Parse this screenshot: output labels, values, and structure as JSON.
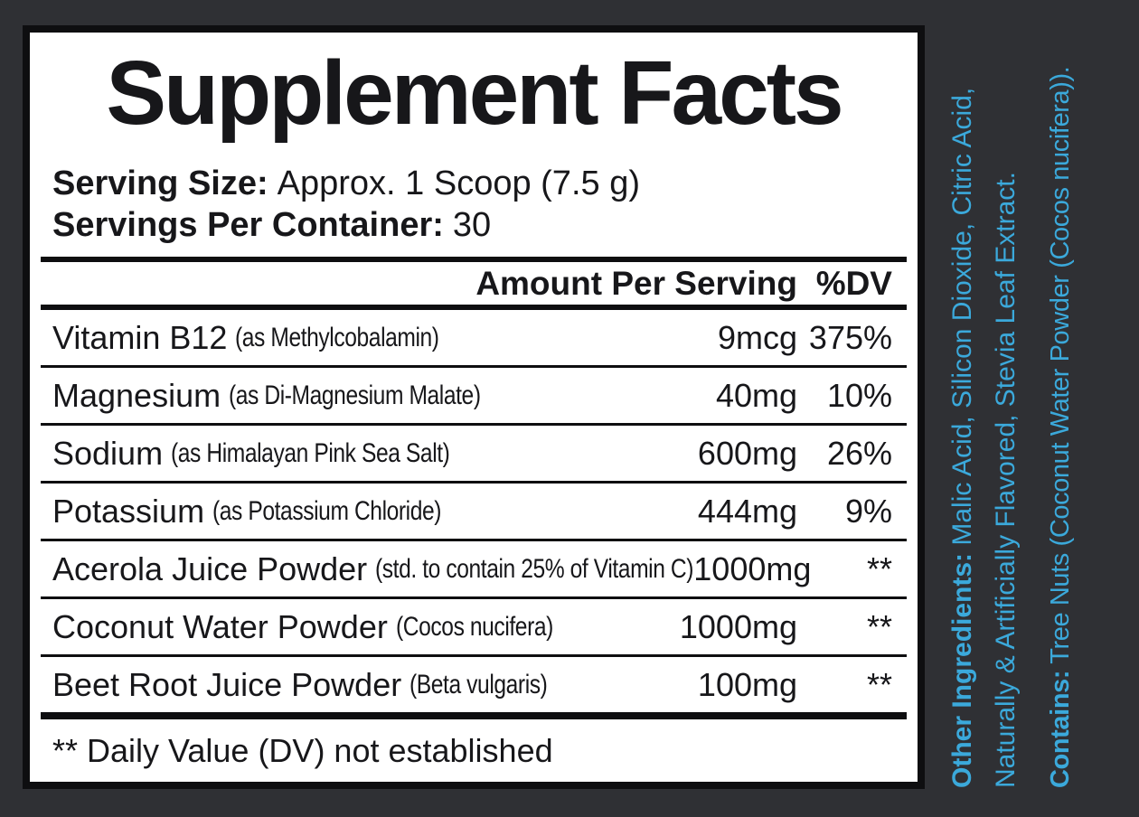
{
  "colors": {
    "background": "#2f3034",
    "panel": "#ffffff",
    "rule_black": "#0e0e10",
    "accent_blue": "#3ba9db"
  },
  "label": {
    "title": "Supplement Facts",
    "serving_size_label": "Serving Size:",
    "serving_size_value": "Approx. 1 Scoop (7.5 g)",
    "servings_label": "Servings Per Container:",
    "servings_value": "30",
    "table": {
      "amount_header": "Amount Per Serving",
      "dv_header": "%DV",
      "rows": [
        {
          "name": "Vitamin B12",
          "detail": "(as Methylcobalamin)",
          "amount": "9mcg",
          "dv": "375%"
        },
        {
          "name": "Magnesium",
          "detail": "(as Di-Magnesium Malate)",
          "amount": "40mg",
          "dv": "10%"
        },
        {
          "name": "Sodium",
          "detail": "(as Himalayan Pink Sea Salt)",
          "amount": "600mg",
          "dv": "26%"
        },
        {
          "name": "Potassium",
          "detail": "(as Potassium Chloride)",
          "amount": "444mg",
          "dv": "9%"
        },
        {
          "name": "Acerola Juice Powder",
          "detail": "(std. to contain 25% of Vitamin C)",
          "amount": "1000mg",
          "dv": "**"
        },
        {
          "name": "Coconut Water Powder",
          "detail": "(Cocos nucifera)",
          "amount": "1000mg",
          "dv": "**"
        },
        {
          "name": "Beet Root Juice Powder",
          "detail": "(Beta vulgaris)",
          "amount": "100mg",
          "dv": "**"
        }
      ]
    },
    "footnote": "** Daily Value (DV) not established"
  },
  "side_text": {
    "other_ingredients_label": "Other Ingredients:",
    "other_ingredients_line1": "Malic Acid, Silicon Dioxide, Citric Acid,",
    "other_ingredients_line2": "Naturally & Artificially Flavored, Stevia Leaf Extract.",
    "contains_label": "Contains:",
    "contains_value": "Tree Nuts (Coconut Water Powder (Cocos nucifera))."
  }
}
